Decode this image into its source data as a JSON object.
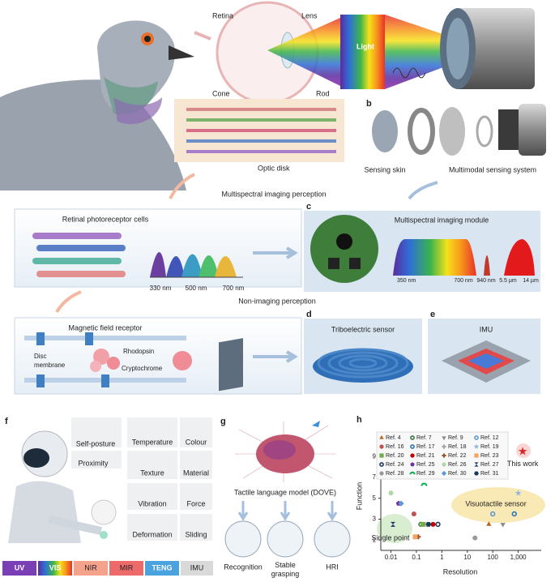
{
  "figure": {
    "panel_a": {
      "retina": "Retina",
      "lens": "Lens",
      "light": "Light",
      "cone": "Cone",
      "rod": "Rod",
      "optic_disk": "Optic disk",
      "imaging": "Multispectral imaging perception",
      "photoreceptor_title": "Retinal photoreceptor cells",
      "wavelengths": [
        "330 nm",
        "500 nm",
        "700 nm"
      ],
      "non_imaging": "Non-imaging perception",
      "magnetic_title": "Magnetic field receptor",
      "disc_membrane": [
        "Disc",
        "membrane"
      ],
      "rhodopsin": "Rhodopsin",
      "cryptochrome": "Cryptochrome"
    },
    "panel_b": {
      "label": "b",
      "sensing_skin": "Sensing skin",
      "multimodal": "Multimodal sensing system"
    },
    "panel_c": {
      "label": "c",
      "title": "Multispectral imaging module",
      "wavelengths": [
        "350 nm",
        "700 nm",
        "940 nm",
        "5.5 µm",
        "14 µm"
      ]
    },
    "panel_d": {
      "label": "d",
      "title": "Triboelectric sensor"
    },
    "panel_e": {
      "label": "e",
      "title": "IMU"
    },
    "panel_f": {
      "label": "f",
      "perceptions": [
        "Self-posture",
        "Temperature",
        "Colour",
        "Proximity",
        "Texture",
        "Material",
        "Vibration",
        "Force",
        "Deformation",
        "Sliding"
      ],
      "modalities": [
        "UV",
        "VIS",
        "NIR",
        "MIR",
        "TENG",
        "IMU"
      ]
    },
    "panel_g": {
      "label": "g",
      "title": "Tactile language model (DOVE)",
      "recognition": "Recognition",
      "grasping": [
        "Stable",
        "grasping"
      ],
      "hri": "HRI"
    }
  },
  "chart_data": {
    "type": "scatter",
    "panel_label": "h",
    "xlabel": "Resolution",
    "ylabel": "Function",
    "xscale": "log",
    "xlim": [
      0.004,
      8000
    ],
    "ylim": [
      0,
      10.5
    ],
    "xticks": [
      0.01,
      0.1,
      1,
      10,
      100,
      {
        "value": 1000,
        "label": "1,000"
      }
    ],
    "yticks": [
      1,
      3,
      5,
      7,
      9
    ],
    "annotations": [
      "Visuotactile sensor",
      "Single point"
    ],
    "series": [
      {
        "name": "Ref. 4",
        "color": "#b5651d",
        "marker": "triangle",
        "x": [
          70
        ],
        "y": [
          2.5
        ]
      },
      {
        "name": "Ref. 7",
        "color": "#3b7a3b",
        "marker": "ring",
        "x": [
          0.15
        ],
        "y": [
          2.5
        ]
      },
      {
        "name": "Ref. 9",
        "color": "#8a8a8a",
        "marker": "tri-down",
        "x": [
          250
        ],
        "y": [
          2.5
        ]
      },
      {
        "name": "Ref. 12",
        "color": "#5b9bd5",
        "marker": "ring",
        "x": [
          100
        ],
        "y": [
          3.5
        ]
      },
      {
        "name": "Ref. 16",
        "color": "#c0504d",
        "marker": "circle",
        "x": [
          0.08
        ],
        "y": [
          3.5
        ]
      },
      {
        "name": "Ref. 17",
        "color": "#2e75b6",
        "marker": "ring",
        "x": [
          700
        ],
        "y": [
          3.5
        ]
      },
      {
        "name": "Ref. 18",
        "color": "#a6a6a6",
        "marker": "plus",
        "x": [
          0.25
        ],
        "y": [
          2.5
        ]
      },
      {
        "name": "Ref. 19",
        "color": "#8eb4e3",
        "marker": "star",
        "x": [
          1000
        ],
        "y": [
          5.5
        ]
      },
      {
        "name": "Ref. 20",
        "color": "#70ad47",
        "marker": "square",
        "x": [
          0.18
        ],
        "y": [
          2.5
        ]
      },
      {
        "name": "Ref. 21",
        "color": "#c00000",
        "marker": "circle",
        "x": [
          0.45
        ],
        "y": [
          2.5
        ]
      },
      {
        "name": "Ref. 22",
        "color": "#a0522d",
        "marker": "plus",
        "x": [
          0.12
        ],
        "y": [
          1.3
        ]
      },
      {
        "name": "Ref. 23",
        "color": "#f4a460",
        "marker": "square",
        "x": [
          0.09
        ],
        "y": [
          1.3
        ]
      },
      {
        "name": "Ref. 24",
        "color": "#1f3864",
        "marker": "ring",
        "x": [
          0.7
        ],
        "y": [
          2.5
        ]
      },
      {
        "name": "Ref. 25",
        "color": "#7030a0",
        "marker": "pentagon",
        "x": [
          0.02
        ],
        "y": [
          4.5
        ]
      },
      {
        "name": "Ref. 26",
        "color": "#b4d7a8",
        "marker": "circle",
        "x": [
          0.01
        ],
        "y": [
          5.5
        ]
      },
      {
        "name": "Ref. 27",
        "color": "#203864",
        "marker": "hourglass",
        "x": [
          0.012
        ],
        "y": [
          2.5
        ]
      },
      {
        "name": "Ref. 28",
        "color": "#999999",
        "marker": "circle",
        "x": [
          20
        ],
        "y": [
          1.2
        ]
      },
      {
        "name": "Ref. 29",
        "color": "#00b050",
        "marker": "arc",
        "x": [
          0.2
        ],
        "y": [
          6.3
        ]
      },
      {
        "name": "Ref. 30",
        "color": "#5b9bd5",
        "marker": "diamond",
        "x": [
          0.025
        ],
        "y": [
          4.5
        ]
      },
      {
        "name": "Ref. 31",
        "color": "#17375e",
        "marker": "hexagon",
        "x": [
          0.3
        ],
        "y": [
          2.5
        ]
      },
      {
        "name": "This work",
        "color": "#d62728",
        "marker": "star",
        "x": [
          1500
        ],
        "y": [
          9.5
        ]
      }
    ]
  }
}
